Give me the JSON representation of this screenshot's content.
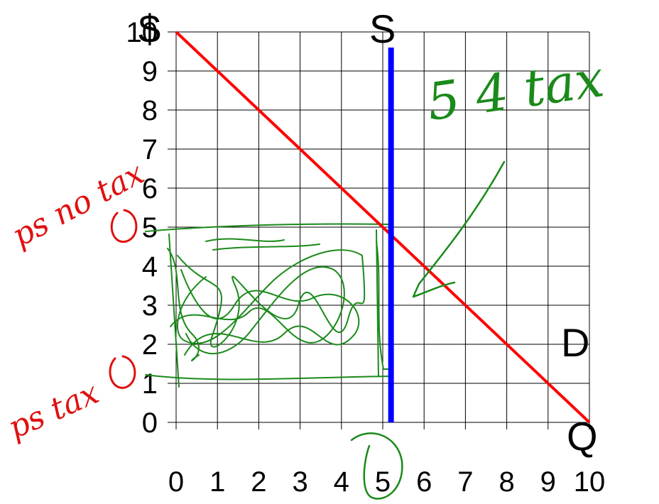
{
  "chart_data": {
    "type": "line",
    "title": "",
    "xlabel": "Q",
    "ylabel": "$",
    "xlim": [
      0,
      10
    ],
    "ylim": [
      0,
      10
    ],
    "grid": true,
    "x_ticks": [
      "0",
      "1",
      "2",
      "3",
      "4",
      "5",
      "6",
      "7",
      "8",
      "9",
      "10"
    ],
    "y_ticks": [
      "0",
      "1",
      "2",
      "3",
      "4",
      "5",
      "6",
      "7",
      "8",
      "9",
      "10"
    ],
    "series": [
      {
        "name": "D",
        "color": "#ff0000",
        "points": [
          [
            0,
            10
          ],
          [
            10,
            0
          ]
        ]
      },
      {
        "name": "S",
        "color": "#0000ff",
        "points": [
          [
            5.2,
            0
          ],
          [
            5.2,
            9.6
          ]
        ]
      }
    ]
  },
  "annotations": {
    "ps_no_tax": "ps no tax",
    "ps_tax": "ps tax",
    "top_right": "5 4 tax"
  },
  "colors": {
    "demand": "#ff0000",
    "supply": "#0000ff",
    "grid": "#000000",
    "green_ink": "#1a8a1a",
    "red_ink": "#e01010"
  }
}
